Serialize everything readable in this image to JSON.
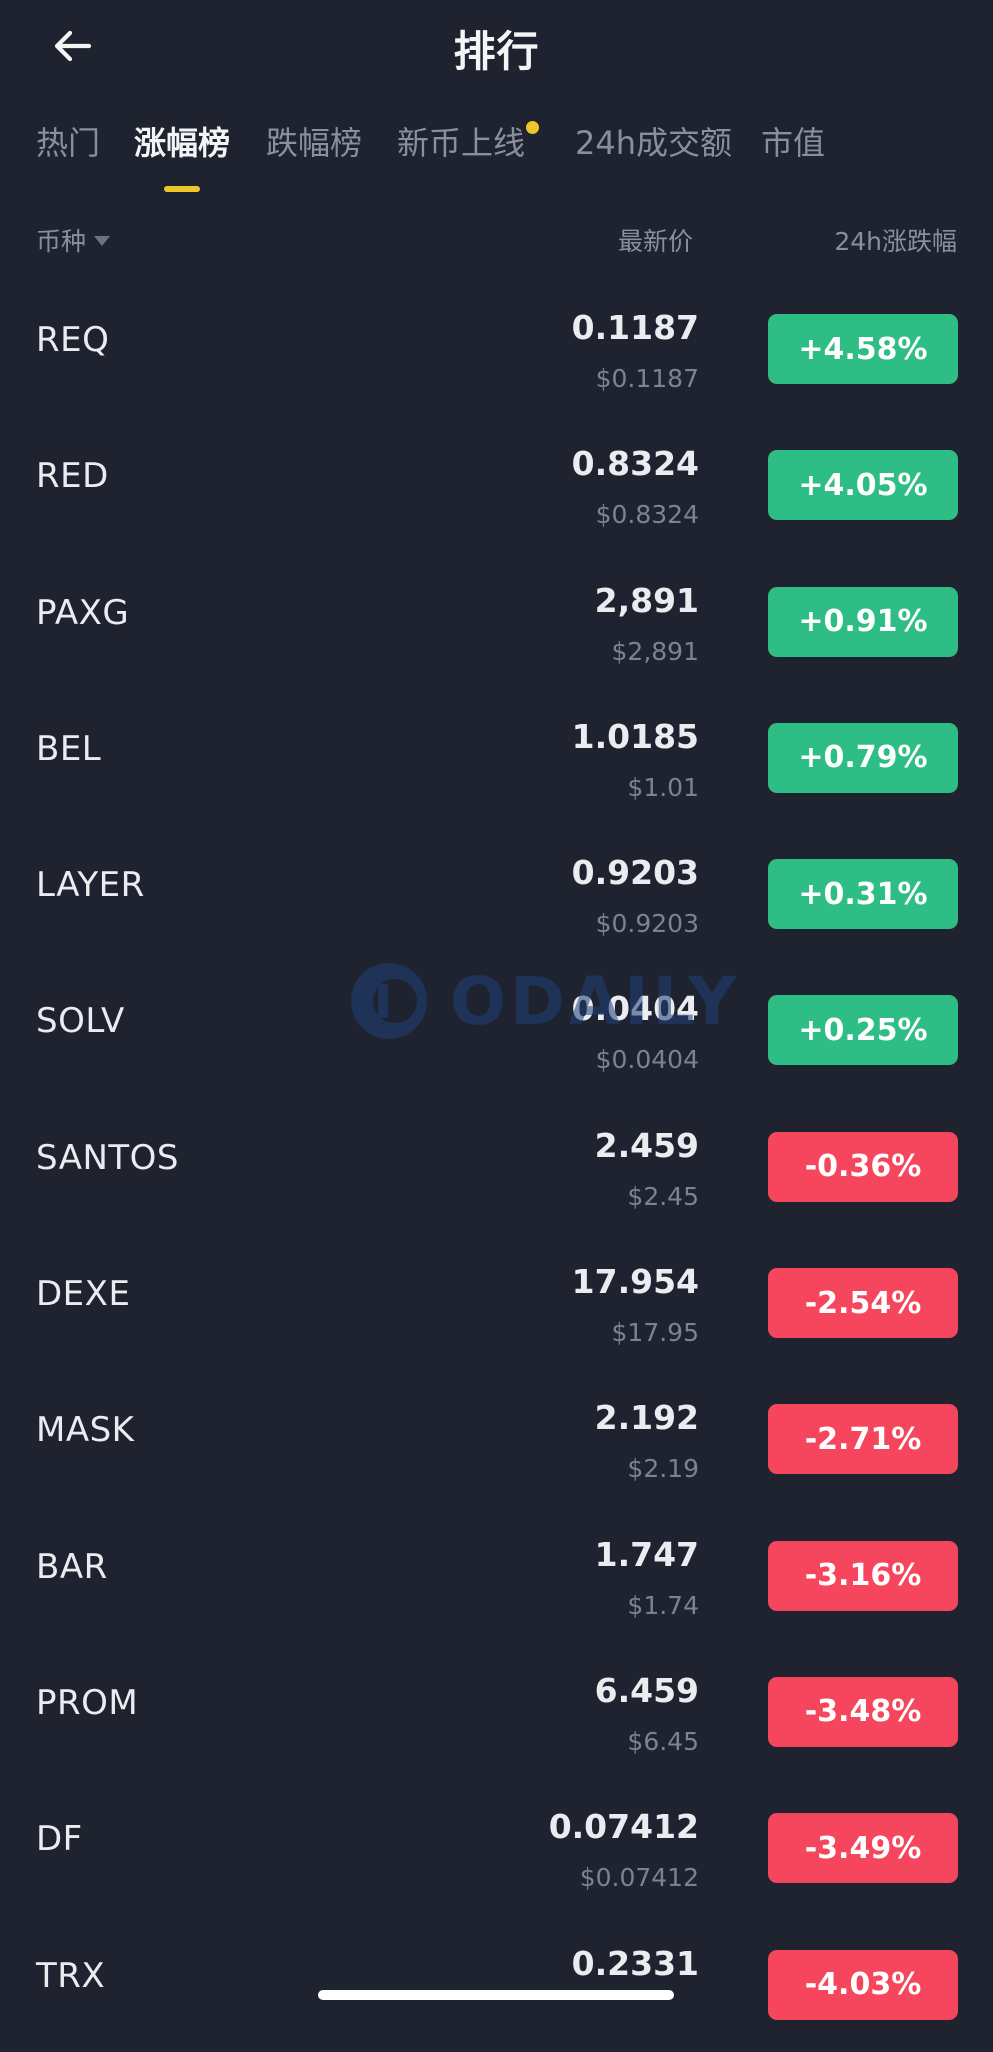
{
  "header": {
    "title": "排行",
    "back_icon": "arrow-left-icon"
  },
  "tabs": [
    {
      "label": "热门",
      "active": false
    },
    {
      "label": "涨幅榜",
      "active": true
    },
    {
      "label": "跌幅榜",
      "active": false
    },
    {
      "label": "新币上线",
      "active": false,
      "has_dot": true
    },
    {
      "label": "24h成交额",
      "active": false
    },
    {
      "label": "市值",
      "active": false
    }
  ],
  "columns": {
    "coin": "币种",
    "price": "最新价",
    "change": "24h涨跌幅"
  },
  "rows": [
    {
      "symbol": "REQ",
      "price": "0.1187",
      "fiat": "$0.1187",
      "change": "+4.58%",
      "dir": "up"
    },
    {
      "symbol": "RED",
      "price": "0.8324",
      "fiat": "$0.8324",
      "change": "+4.05%",
      "dir": "up"
    },
    {
      "symbol": "PAXG",
      "price": "2,891",
      "fiat": "$2,891",
      "change": "+0.91%",
      "dir": "up"
    },
    {
      "symbol": "BEL",
      "price": "1.0185",
      "fiat": "$1.01",
      "change": "+0.79%",
      "dir": "up"
    },
    {
      "symbol": "LAYER",
      "price": "0.9203",
      "fiat": "$0.9203",
      "change": "+0.31%",
      "dir": "up"
    },
    {
      "symbol": "SOLV",
      "price": "0.0404",
      "fiat": "$0.0404",
      "change": "+0.25%",
      "dir": "up"
    },
    {
      "symbol": "SANTOS",
      "price": "2.459",
      "fiat": "$2.45",
      "change": "-0.36%",
      "dir": "down"
    },
    {
      "symbol": "DEXE",
      "price": "17.954",
      "fiat": "$17.95",
      "change": "-2.54%",
      "dir": "down"
    },
    {
      "symbol": "MASK",
      "price": "2.192",
      "fiat": "$2.19",
      "change": "-2.71%",
      "dir": "down"
    },
    {
      "symbol": "BAR",
      "price": "1.747",
      "fiat": "$1.74",
      "change": "-3.16%",
      "dir": "down"
    },
    {
      "symbol": "PROM",
      "price": "6.459",
      "fiat": "$6.45",
      "change": "-3.48%",
      "dir": "down"
    },
    {
      "symbol": "DF",
      "price": "0.07412",
      "fiat": "$0.07412",
      "change": "-3.49%",
      "dir": "down"
    },
    {
      "symbol": "TRX",
      "price": "0.2331",
      "fiat": "",
      "change": "-4.03%",
      "dir": "down"
    }
  ],
  "watermark": {
    "text": "ODAILY",
    "icon": "odaily-logo-icon"
  },
  "colors": {
    "background": "#1f2330",
    "up": "#2ebd85",
    "down": "#f6465d",
    "accent": "#f0c529"
  }
}
